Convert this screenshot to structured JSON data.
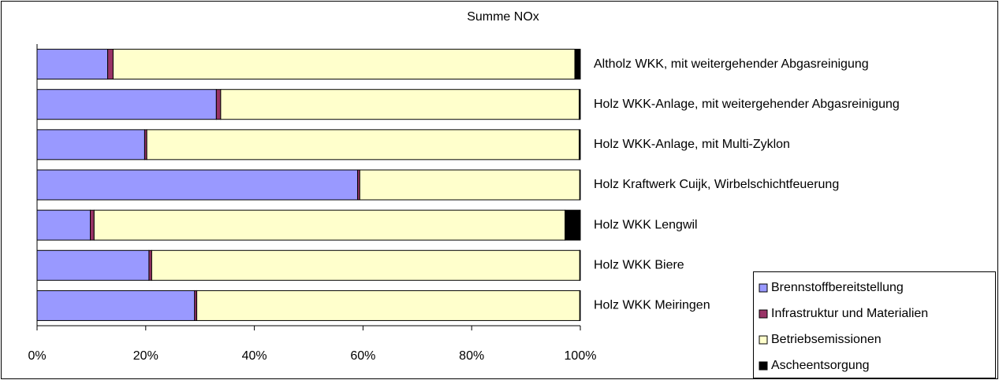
{
  "chart_data": {
    "type": "stacked-barh",
    "title": "Summe NOx",
    "categories": [
      "Altholz WKK, mit weitergehender Abgasreinigung",
      "Holz WKK-Anlage, mit weitergehender Abgasreinigung",
      "Holz WKK-Anlage, mit Multi-Zyklon",
      "Holz Kraftwerk Cuijk, Wirbelschichtfeuerung",
      "Holz WKK Lengwil",
      "Holz WKK Biere",
      "Holz WKK Meiringen"
    ],
    "series": [
      {
        "name": "Brennstoffbereitstellung",
        "color": "#9999ff",
        "values": [
          13,
          33,
          19.8,
          59,
          9.8,
          20.6,
          29
        ]
      },
      {
        "name": "Infrastruktur und Materialien",
        "color": "#993366",
        "values": [
          1,
          0.8,
          0.4,
          0.4,
          0.7,
          0.5,
          0.4
        ]
      },
      {
        "name": "Betriebsemissionen",
        "color": "#ffffcc",
        "values": [
          85,
          66,
          79.6,
          40.5,
          86.7,
          78.8,
          70.5
        ]
      },
      {
        "name": "Ascheentsorgung",
        "color": "#000000",
        "values": [
          1,
          0.2,
          0.2,
          0.1,
          2.8,
          0.1,
          0.1
        ]
      }
    ],
    "xlim": [
      0,
      100
    ],
    "xticks": [
      {
        "value": 0,
        "label": "0%"
      },
      {
        "value": 20,
        "label": "20%"
      },
      {
        "value": 40,
        "label": "40%"
      },
      {
        "value": 60,
        "label": "60%"
      },
      {
        "value": 80,
        "label": "80%"
      },
      {
        "value": 100,
        "label": "100%"
      }
    ],
    "legend": "lower right"
  }
}
